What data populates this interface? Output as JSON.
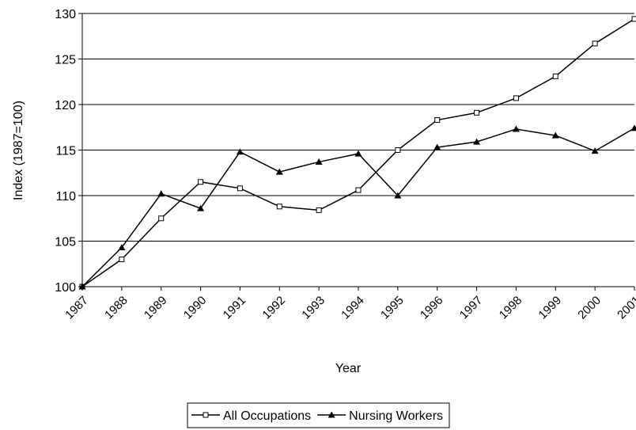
{
  "chart_data": {
    "type": "line",
    "x_label": "Year",
    "y_label": "Index (1987=100)",
    "categories": [
      "1987",
      "1988",
      "1989",
      "1990",
      "1991",
      "1992",
      "1993",
      "1994",
      "1995",
      "1996",
      "1997",
      "1998",
      "1999",
      "2000",
      "2001"
    ],
    "series": [
      {
        "name": "All Occupations",
        "color": "#000000",
        "marker": "square",
        "values": [
          100,
          103.0,
          107.5,
          111.5,
          110.8,
          108.8,
          108.4,
          110.6,
          115.0,
          118.3,
          119.1,
          120.7,
          123.1,
          126.7,
          129.4
        ]
      },
      {
        "name": "Nursing Workers",
        "color": "#000000",
        "marker": "triangle",
        "values": [
          100,
          104.3,
          110.2,
          108.6,
          114.8,
          112.6,
          113.7,
          114.6,
          110.0,
          115.3,
          115.9,
          117.3,
          116.6,
          114.9,
          117.4
        ]
      }
    ],
    "ylim": [
      100,
      130
    ],
    "yticks": [
      100,
      105,
      110,
      115,
      120,
      125,
      130
    ],
    "grid": true,
    "legend": "bottom"
  }
}
